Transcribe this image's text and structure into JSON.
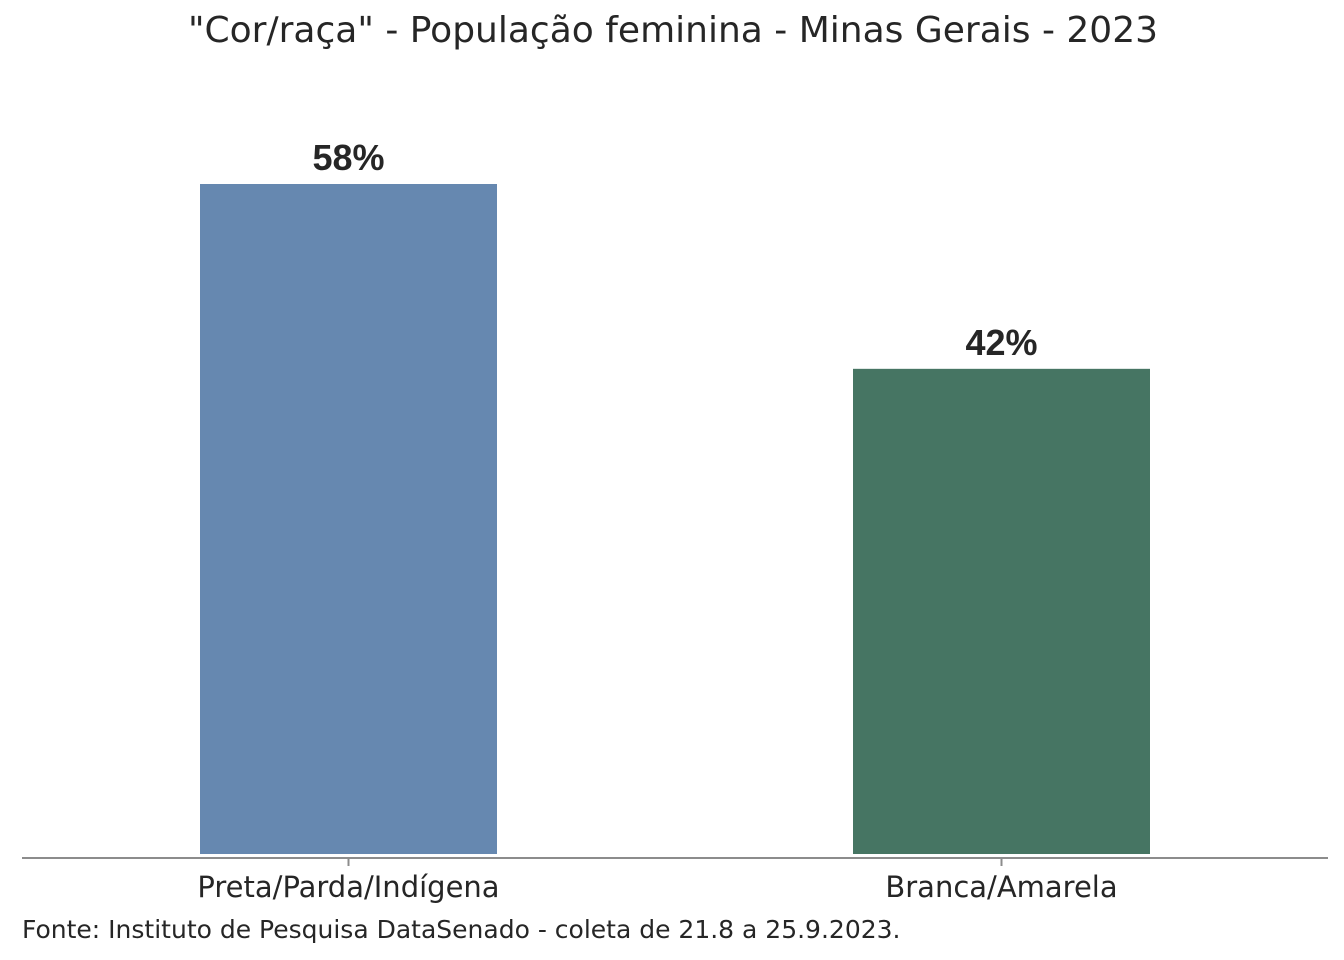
{
  "chart_data": {
    "type": "bar",
    "title": "\"Cor/raça\" - População feminina - Minas Gerais - 2023",
    "categories": [
      "Preta/Parda/Indígena",
      "Branca/Amarela"
    ],
    "values": [
      58,
      42
    ],
    "value_labels": [
      "58%",
      "42%"
    ],
    "colors": [
      "#6688B0",
      "#467563"
    ],
    "ylim": [
      0,
      60
    ],
    "grid": false,
    "legend": "none",
    "xlabel": "",
    "ylabel": ""
  },
  "source": "Fonte: Instituto de Pesquisa DataSenado - coleta de 21.8 a 25.9.2023.",
  "colors": {
    "text": "#262626",
    "axis": "#8c8c8c"
  }
}
